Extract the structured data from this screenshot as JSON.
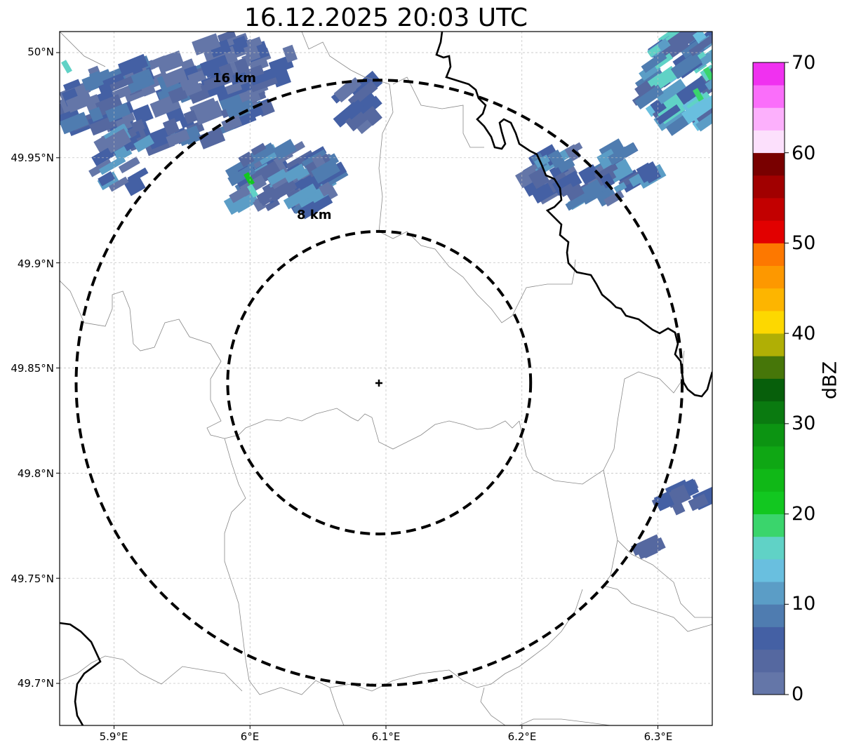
{
  "title": "16.12.2025 20:03 UTC",
  "map": {
    "lon_range": [
      5.86,
      6.34
    ],
    "lat_range": [
      49.68,
      50.01
    ],
    "center": {
      "lon": 6.095,
      "lat": 49.843
    },
    "rings": [
      {
        "radius_km": 8,
        "label": "8 km"
      },
      {
        "radius_km": 16,
        "label": "16 km"
      }
    ],
    "x_ticks": [
      "5.9°E",
      "6°E",
      "6.1°E",
      "6.2°E",
      "6.3°E"
    ],
    "y_ticks": [
      "50°N",
      "49.95°N",
      "49.9°N",
      "49.85°N",
      "49.8°N",
      "49.75°N",
      "49.7°N"
    ],
    "grid": true,
    "layers": [
      "radar reflectivity",
      "administrative borders",
      "national border"
    ]
  },
  "colorbar": {
    "label": "dBZ",
    "ticks": [
      "0",
      "10",
      "20",
      "30",
      "40",
      "50",
      "60",
      "70"
    ],
    "range": [
      0,
      70
    ],
    "step": 2.5,
    "colors": [
      "#6476a8",
      "#5568a0",
      "#4460a4",
      "#4f7cb0",
      "#5b9dc6",
      "#69bfdf",
      "#60d2c6",
      "#3ad56c",
      "#12c720",
      "#10b817",
      "#0fa714",
      "#0c9412",
      "#0a7a10",
      "#075f0b",
      "#467609",
      "#b0af05",
      "#fdd800",
      "#fdb500",
      "#fd9800",
      "#fd7800",
      "#e20000",
      "#c20000",
      "#a10000",
      "#790000",
      "#fce0fc",
      "#fcb0fc",
      "#fa6efa",
      "#f031f0"
    ]
  }
}
